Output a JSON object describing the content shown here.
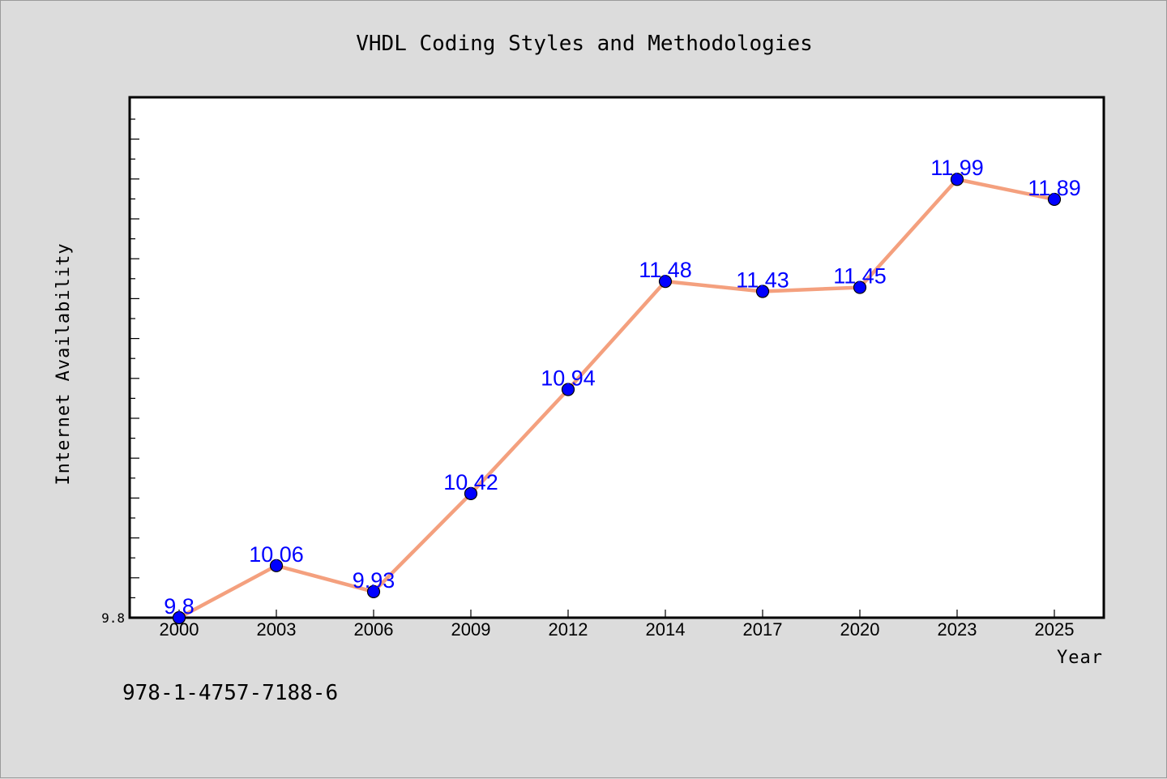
{
  "chart_data": {
    "type": "line",
    "title": "VHDL Coding Styles and Methodologies",
    "xlabel": "Year",
    "ylabel": "Internet Availability",
    "categories": [
      "2000",
      "2003",
      "2006",
      "2009",
      "2012",
      "2014",
      "2017",
      "2020",
      "2023",
      "2025"
    ],
    "series": [
      {
        "values": [
          9.8,
          10.06,
          9.93,
          10.42,
          10.94,
          11.48,
          11.43,
          11.45,
          11.99,
          11.89
        ],
        "labels": [
          "9.8",
          "10.06",
          "9.93",
          "10.42",
          "10.94",
          "11.48",
          "11.43",
          "11.45",
          "11.99",
          "11.89"
        ]
      }
    ],
    "ylim": [
      9.8,
      12.4
    ],
    "y_tick_labels": [
      "9.8"
    ],
    "grid": false,
    "colors": {
      "line": "#f4a07e",
      "marker": "#0000ff",
      "data_label": "#0000ff",
      "plot_bg": "#ffffff",
      "page_bg": "#dcdcdc"
    }
  },
  "footer": {
    "isbn": "978-1-4757-7188-6"
  }
}
